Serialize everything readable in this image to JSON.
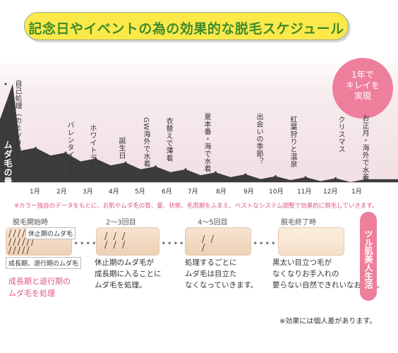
{
  "header": {
    "title": "記念日やイベントの為の効果的な脱毛スケジュール"
  },
  "badge": {
    "lines": [
      "1年で",
      "キレイを",
      "実現"
    ]
  },
  "chart_data": {
    "type": "area",
    "ylabel": "ムダ毛の量",
    "categories": [
      "1月",
      "2月",
      "3月",
      "4月",
      "5月",
      "6月",
      "7月",
      "8月",
      "9月",
      "10月",
      "11月",
      "12月",
      "1月"
    ],
    "events": [
      "自己処理（カミソリなど）",
      "バレンタインデー",
      "ホワイトデー",
      "誕生日",
      "GW海外で水着",
      "衣替えで薄着",
      "夏本番・海で水着",
      "出会いの季節？",
      "紅葉狩りと温泉",
      "クリスマス",
      "お正月・海外で水着"
    ],
    "values": [
      1.0,
      0.35,
      0.3,
      0.24,
      0.2,
      0.16,
      0.13,
      0.1,
      0.08,
      0.06,
      0.05,
      0.04,
      0.03
    ],
    "colors": {
      "area": "#3c3c3c",
      "accent": "#ee7f9c",
      "title_bg": "#fbe94a",
      "title_text": "#3f8b2c"
    }
  },
  "note": "※カラー独自のデータをもとに、お肌やムダ毛の質、量、状態、毛周期をふまえ、ベストなシステム調整で効果的に脱毛していきます。",
  "stages": [
    {
      "label": "脱毛開始時",
      "tag1": "休止期のムダ毛",
      "tag2": "成長期、退行期のムダ毛",
      "desc": [
        "成長期と退行期の",
        "ムダ毛を処理"
      ]
    },
    {
      "label": "2〜3回目",
      "desc": [
        "休止期のムダ毛が",
        "成長期に入ることに",
        "ムダ毛を処理。"
      ]
    },
    {
      "label": "4〜5回目",
      "desc": [
        "処理するごとに",
        "ムダ毛は目立た",
        "なくなっていきます。"
      ]
    },
    {
      "label": "脱毛終了時",
      "desc": [
        "黒太い目立つ毛が",
        "なくなりお手入れの",
        "要らない自然できれいなお肌に。"
      ]
    }
  ],
  "final": "ツル肌美人生活",
  "footer": "※効果には個人差があります。"
}
